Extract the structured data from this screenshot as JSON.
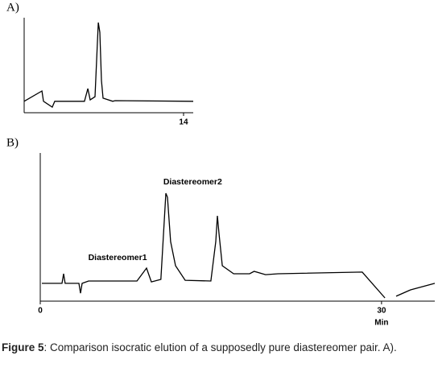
{
  "chart_data": [
    {
      "type": "line",
      "label": "A)",
      "color": "#000000",
      "x": [
        0,
        1.56,
        1.7,
        2.47,
        2.69,
        5.3,
        5.59,
        5.8,
        6.22,
        6.44,
        6.51,
        6.65,
        6.79,
        6.93,
        7.78,
        7.99,
        14.85
      ],
      "values": [
        12,
        22.9,
        12,
        5.9,
        12,
        12,
        25.4,
        13.6,
        16.9,
        76.3,
        94.9,
        84.7,
        33.9,
        15.3,
        12,
        12.7,
        12
      ],
      "xlim": [
        0,
        14.85
      ],
      "ylim": [
        0,
        100
      ],
      "xticks": [
        14
      ]
    },
    {
      "type": "line",
      "label": "B)",
      "color": "#000000",
      "xlabel": "Min",
      "x": [
        0.14,
        1.91,
        2.05,
        2.19,
        3.4,
        3.54,
        3.68,
        4.25,
        8.5,
        9.34,
        9.77,
        10.6,
        11.04,
        11.18,
        11.46,
        11.89,
        12.74,
        15.0,
        15.43,
        15.57,
        15.71,
        16.0,
        17.0,
        18.4,
        18.8,
        19.8,
        20.9,
        28.3,
        30.3,
        null,
        31.28,
        32.55,
        34.68
      ],
      "values": [
        12,
        12,
        18.5,
        12,
        12,
        5.4,
        12,
        13.6,
        13.6,
        22.3,
        13,
        14.7,
        72.8,
        70.1,
        40.2,
        23.9,
        14.1,
        13.6,
        40.2,
        57.6,
        45.7,
        23.9,
        18.5,
        18.5,
        20.1,
        17.9,
        18.5,
        19.6,
        2.2,
        null,
        3.3,
        7.6,
        12
      ],
      "xlim": [
        0,
        34.68
      ],
      "ylim": [
        0,
        100
      ],
      "xticks": [
        0,
        30
      ],
      "annotations": [
        {
          "text": "Diastereomer1",
          "x": 6.8,
          "y": 29.3
        },
        {
          "text": "Diastereomer2",
          "x": 13.4,
          "y": 80.4
        }
      ]
    }
  ],
  "caption": {
    "label": "Figure 5",
    "text": ": Comparison isocratic elution of a supposedly pure diastereomer pair. A)."
  }
}
